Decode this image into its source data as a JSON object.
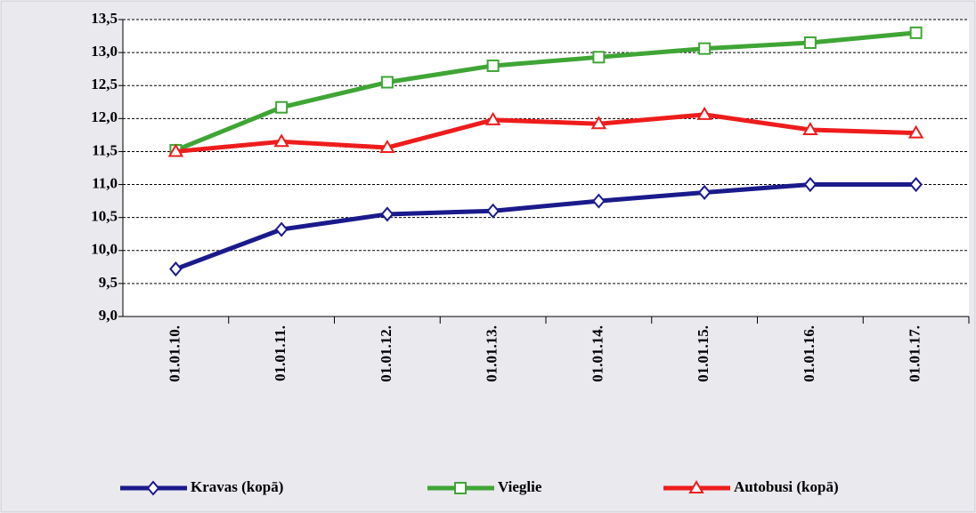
{
  "chart_data": {
    "type": "line",
    "categories": [
      "01.01.10.",
      "01.01.11.",
      "01.01.12.",
      "01.01.13.",
      "01.01.14.",
      "01.01.15.",
      "01.01.16.",
      "01.01.17."
    ],
    "series": [
      {
        "name": "Kravas (kopā)",
        "color": "#1a1a8c",
        "marker": "diamond",
        "values": [
          9.72,
          10.32,
          10.55,
          10.6,
          10.75,
          10.88,
          11.0,
          11.0
        ]
      },
      {
        "name": "Vieglie",
        "color": "#3fa535",
        "marker": "square",
        "values": [
          11.52,
          12.17,
          12.55,
          12.8,
          12.93,
          13.06,
          13.15,
          13.3
        ]
      },
      {
        "name": "Autobusi (kopā)",
        "color": "#ee1c1c",
        "marker": "triangle",
        "values": [
          11.5,
          11.65,
          11.56,
          11.98,
          11.92,
          12.06,
          11.83,
          11.78
        ]
      }
    ],
    "ylim": [
      9,
      13.5
    ],
    "yticks": [
      {
        "value": 9,
        "label": "9,0"
      },
      {
        "value": 9.5,
        "label": "9,5"
      },
      {
        "value": 10,
        "label": "10,0"
      },
      {
        "value": 10.5,
        "label": "10,5"
      },
      {
        "value": 11,
        "label": "11,0"
      },
      {
        "value": 11.5,
        "label": "11,5"
      },
      {
        "value": 12,
        "label": "12,0"
      },
      {
        "value": 12.5,
        "label": "12,5"
      },
      {
        "value": 13,
        "label": "13,0"
      },
      {
        "value": 13.5,
        "label": "13,5"
      }
    ],
    "grid": true,
    "legend": "bottom"
  }
}
